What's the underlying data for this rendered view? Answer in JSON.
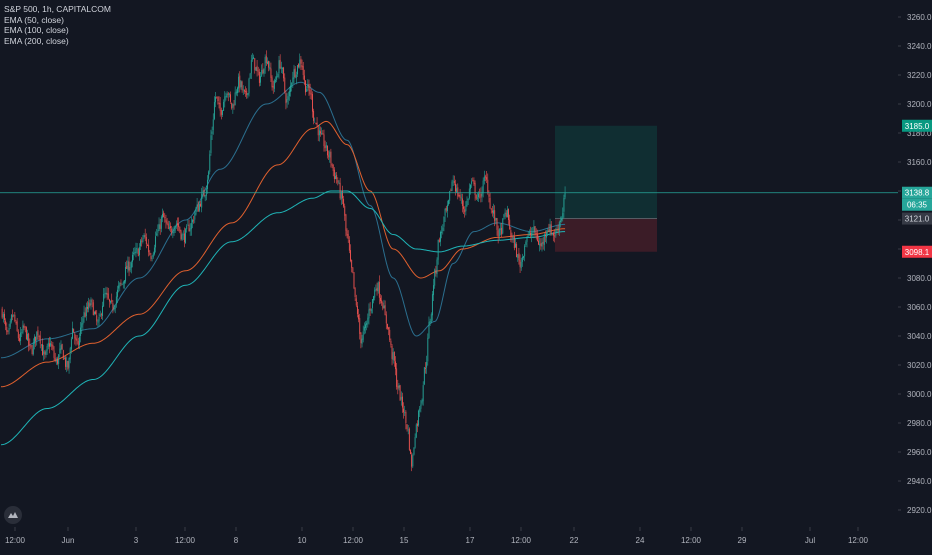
{
  "legend": {
    "title": "S&P 500, 1h, CAPITALCOM",
    "indicators": [
      "EMA (50, close)",
      "EMA (100, close)",
      "EMA (200, close)"
    ]
  },
  "colors": {
    "background": "#131722",
    "up": "#26a69a",
    "down": "#ef5350",
    "ema50": "#2b6f8f",
    "ema100": "#e0602e",
    "ema200": "#1fb4b7",
    "price_line": "#26a69a",
    "target": "#089981",
    "stop": "#f23645",
    "axis_text": "#b2b5be"
  },
  "price_axis": {
    "ticks": [
      "3260.0",
      "3240.0",
      "3220.0",
      "3200.0",
      "3180.0",
      "3160.0",
      "3140.0",
      "3120.0",
      "3100.0",
      "3080.0",
      "3060.0",
      "3040.0",
      "3020.0",
      "3000.0",
      "2980.0",
      "2960.0",
      "2940.0",
      "2920.0"
    ],
    "labels": {
      "target": "3185.0",
      "last": "3138.8",
      "countdown": "06:35",
      "entry": "3121.0",
      "stop": "3098.1"
    }
  },
  "time_axis": {
    "ticks": [
      "12:00",
      "Jun",
      "3",
      "12:00",
      "8",
      "10",
      "12:00",
      "15",
      "17",
      "12:00",
      "22",
      "24",
      "12:00",
      "29",
      "Jul",
      "12:00"
    ]
  },
  "chart_data": {
    "type": "candlestick",
    "symbol": "S&P 500",
    "interval": "1h",
    "source": "CAPITALCOM",
    "ylim": [
      2910,
      3270
    ],
    "ylabel": "",
    "xlabel": "",
    "grid": false,
    "last_price": 3138.8,
    "position": {
      "target": 3185.0,
      "entry": 3121.0,
      "stop": 3098.1
    },
    "close_anchors": [
      [
        0,
        3058
      ],
      [
        6,
        3040
      ],
      [
        10,
        3054
      ],
      [
        16,
        3038
      ],
      [
        20,
        3045
      ],
      [
        26,
        3030
      ],
      [
        32,
        3043
      ],
      [
        38,
        3025
      ],
      [
        42,
        3035
      ],
      [
        48,
        3022
      ],
      [
        52,
        3030
      ],
      [
        58,
        3018
      ],
      [
        62,
        3045
      ],
      [
        66,
        3033
      ],
      [
        72,
        3055
      ],
      [
        78,
        3062
      ],
      [
        84,
        3048
      ],
      [
        90,
        3068
      ],
      [
        96,
        3060
      ],
      [
        104,
        3075
      ],
      [
        110,
        3088
      ],
      [
        118,
        3098
      ],
      [
        124,
        3108
      ],
      [
        130,
        3096
      ],
      [
        136,
        3112
      ],
      [
        140,
        3122
      ],
      [
        146,
        3112
      ],
      [
        152,
        3118
      ],
      [
        158,
        3108
      ],
      [
        164,
        3116
      ],
      [
        170,
        3128
      ],
      [
        176,
        3138
      ],
      [
        180,
        3152
      ],
      [
        182,
        3178
      ],
      [
        186,
        3205
      ],
      [
        190,
        3195
      ],
      [
        196,
        3210
      ],
      [
        200,
        3198
      ],
      [
        206,
        3215
      ],
      [
        212,
        3205
      ],
      [
        218,
        3230
      ],
      [
        224,
        3218
      ],
      [
        230,
        3232
      ],
      [
        236,
        3212
      ],
      [
        242,
        3228
      ],
      [
        248,
        3202
      ],
      [
        254,
        3222
      ],
      [
        260,
        3230
      ],
      [
        264,
        3212
      ],
      [
        268,
        3208
      ],
      [
        272,
        3188
      ],
      [
        278,
        3176
      ],
      [
        284,
        3165
      ],
      [
        290,
        3150
      ],
      [
        296,
        3134
      ],
      [
        300,
        3108
      ],
      [
        304,
        3085
      ],
      [
        308,
        3060
      ],
      [
        312,
        3038
      ],
      [
        316,
        3045
      ],
      [
        320,
        3060
      ],
      [
        326,
        3075
      ],
      [
        330,
        3065
      ],
      [
        334,
        3050
      ],
      [
        340,
        3025
      ],
      [
        344,
        3005
      ],
      [
        348,
        2992
      ],
      [
        352,
        2978
      ],
      [
        356,
        2952
      ],
      [
        360,
        2978
      ],
      [
        364,
        2995
      ],
      [
        368,
        3020
      ],
      [
        372,
        3052
      ],
      [
        376,
        3082
      ],
      [
        380,
        3108
      ],
      [
        386,
        3125
      ],
      [
        392,
        3148
      ],
      [
        396,
        3138
      ],
      [
        402,
        3128
      ],
      [
        408,
        3145
      ],
      [
        414,
        3135
      ],
      [
        420,
        3148
      ],
      [
        426,
        3125
      ],
      [
        432,
        3110
      ],
      [
        438,
        3125
      ],
      [
        444,
        3105
      ],
      [
        450,
        3090
      ],
      [
        456,
        3108
      ],
      [
        462,
        3112
      ],
      [
        468,
        3102
      ],
      [
        474,
        3115
      ],
      [
        480,
        3110
      ],
      [
        486,
        3122
      ],
      [
        489,
        3139
      ]
    ],
    "ema_anchors": {
      "EMA 50": [
        [
          0,
          3025
        ],
        [
          40,
          3038
        ],
        [
          80,
          3045
        ],
        [
          120,
          3080
        ],
        [
          160,
          3120
        ],
        [
          190,
          3155
        ],
        [
          230,
          3200
        ],
        [
          260,
          3215
        ],
        [
          276,
          3208
        ],
        [
          300,
          3175
        ],
        [
          320,
          3130
        ],
        [
          340,
          3080
        ],
        [
          360,
          3040
        ],
        [
          376,
          3050
        ],
        [
          392,
          3090
        ],
        [
          410,
          3112
        ],
        [
          430,
          3118
        ],
        [
          460,
          3112
        ],
        [
          489,
          3117
        ]
      ],
      "EMA 100": [
        [
          0,
          3005
        ],
        [
          40,
          3022
        ],
        [
          80,
          3035
        ],
        [
          120,
          3055
        ],
        [
          160,
          3085
        ],
        [
          200,
          3118
        ],
        [
          240,
          3158
        ],
        [
          270,
          3183
        ],
        [
          282,
          3188
        ],
        [
          300,
          3172
        ],
        [
          320,
          3140
        ],
        [
          340,
          3100
        ],
        [
          364,
          3080
        ],
        [
          380,
          3085
        ],
        [
          400,
          3100
        ],
        [
          430,
          3108
        ],
        [
          460,
          3110
        ],
        [
          489,
          3114
        ]
      ],
      "EMA 200": [
        [
          0,
          2965
        ],
        [
          40,
          2990
        ],
        [
          80,
          3010
        ],
        [
          120,
          3040
        ],
        [
          160,
          3075
        ],
        [
          200,
          3105
        ],
        [
          240,
          3125
        ],
        [
          270,
          3135
        ],
        [
          286,
          3140
        ],
        [
          300,
          3140
        ],
        [
          320,
          3128
        ],
        [
          340,
          3110
        ],
        [
          360,
          3100
        ],
        [
          380,
          3098
        ],
        [
          400,
          3102
        ],
        [
          430,
          3106
        ],
        [
          460,
          3108
        ],
        [
          489,
          3112
        ]
      ]
    }
  }
}
